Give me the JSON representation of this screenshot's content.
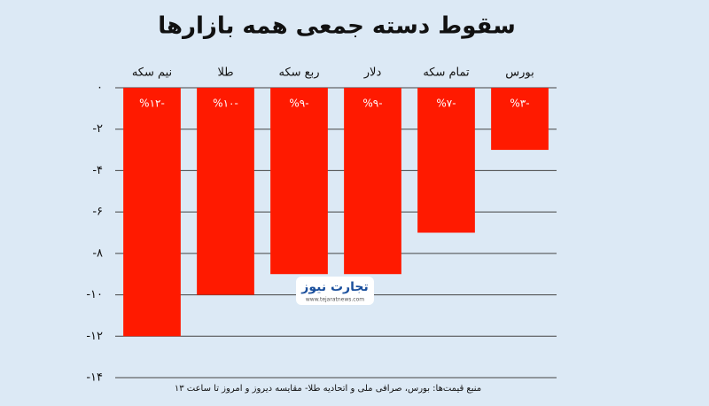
{
  "chart_data": {
    "type": "bar",
    "title": "سقوط دسته جمعی همه بازارها",
    "categories": [
      "نیم سکه",
      "طلا",
      "ربع سکه",
      "دلار",
      "تمام سکه",
      "بورس"
    ],
    "values": [
      -12,
      -10,
      -9,
      -9,
      -7,
      -3
    ],
    "value_labels": [
      "-%۱۲",
      "-%۱۰",
      "-%۹",
      "-%۹",
      "-%۷",
      "-%۳"
    ],
    "color": "#ff1a00",
    "ylim": [
      -14,
      0
    ],
    "yticks": [
      {
        "value": 0,
        "label": "۰"
      },
      {
        "value": -2,
        "label": "-۲"
      },
      {
        "value": -4,
        "label": "-۴"
      },
      {
        "value": -6,
        "label": "-۶"
      },
      {
        "value": -8,
        "label": "-۸"
      },
      {
        "value": -10,
        "label": "-۱۰"
      },
      {
        "value": -12,
        "label": "-۱۲"
      },
      {
        "value": -14,
        "label": "-۱۴"
      }
    ],
    "grid": true,
    "source": "منبع قیمت‌ها: بورس، صرافی ملی و اتحادیه طلا- مقایسه دیروز و امروز تا ساعت ۱۳",
    "logo": {
      "name": "تجارت نیوز",
      "url": "www.tejaratnews.com"
    }
  }
}
